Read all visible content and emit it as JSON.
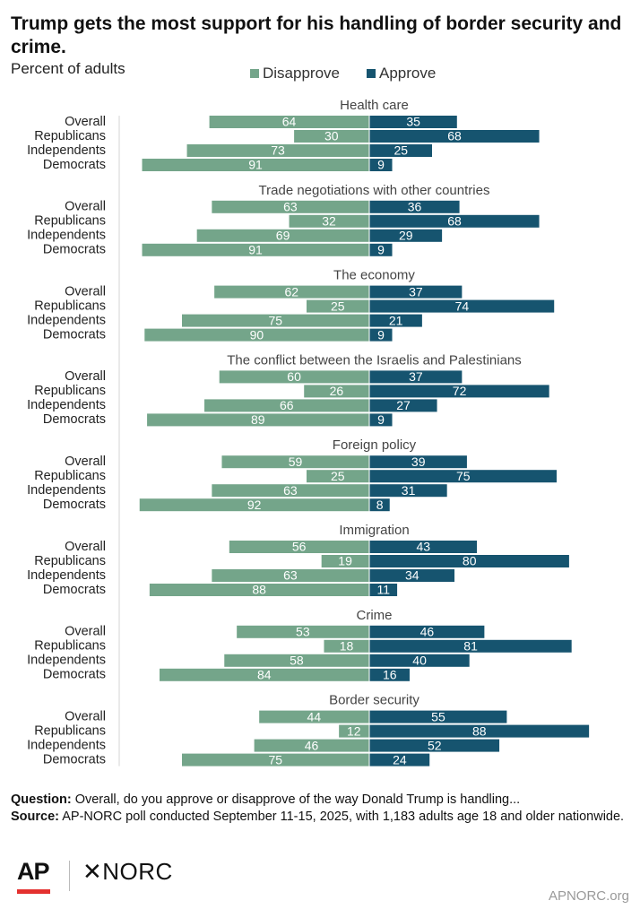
{
  "header": {
    "title": "Trump gets the most support for his handling of border security and crime.",
    "subtitle": "Percent of adults"
  },
  "legend": {
    "disapprove_label": "Disapprove",
    "approve_label": "Approve"
  },
  "colors": {
    "disapprove": "#74a58a",
    "approve": "#16546f"
  },
  "chart_data": {
    "type": "bar",
    "orientation": "horizontal-diverging",
    "subtitle": "Percent of adults",
    "categories": [
      "Overall",
      "Republicans",
      "Independents",
      "Democrats"
    ],
    "legend_position": "top",
    "groups": [
      {
        "title": "Health care",
        "disapprove": [
          64,
          30,
          73,
          91
        ],
        "approve": [
          35,
          68,
          25,
          9
        ]
      },
      {
        "title": "Trade negotiations with other countries",
        "disapprove": [
          63,
          32,
          69,
          91
        ],
        "approve": [
          36,
          68,
          29,
          9
        ]
      },
      {
        "title": "The economy",
        "disapprove": [
          62,
          25,
          75,
          90
        ],
        "approve": [
          37,
          74,
          21,
          9
        ]
      },
      {
        "title": "The conflict between the Israelis and Palestinians",
        "disapprove": [
          60,
          26,
          66,
          89
        ],
        "approve": [
          37,
          72,
          27,
          9
        ]
      },
      {
        "title": "Foreign policy",
        "disapprove": [
          59,
          25,
          63,
          92
        ],
        "approve": [
          39,
          75,
          31,
          8
        ]
      },
      {
        "title": "Immigration",
        "disapprove": [
          56,
          19,
          63,
          88
        ],
        "approve": [
          43,
          80,
          34,
          11
        ]
      },
      {
        "title": "Crime",
        "disapprove": [
          53,
          18,
          58,
          84
        ],
        "approve": [
          46,
          81,
          40,
          16
        ]
      },
      {
        "title": "Border security",
        "disapprove": [
          44,
          12,
          46,
          75
        ],
        "approve": [
          55,
          88,
          52,
          24
        ]
      }
    ],
    "series": [
      {
        "name": "Disapprove"
      },
      {
        "name": "Approve"
      }
    ]
  },
  "footer": {
    "question_label": "Question:",
    "question_text": "Overall, do you approve or disapprove of the way Donald Trump is handling...",
    "source_label": "Source:",
    "source_text": "AP-NORC poll conducted September 11-15, 2025, with 1,183 adults age 18 and older nationwide."
  },
  "branding": {
    "ap_logo": "AP",
    "norc_logo": "✕NORC",
    "url": "APNORC.org"
  }
}
